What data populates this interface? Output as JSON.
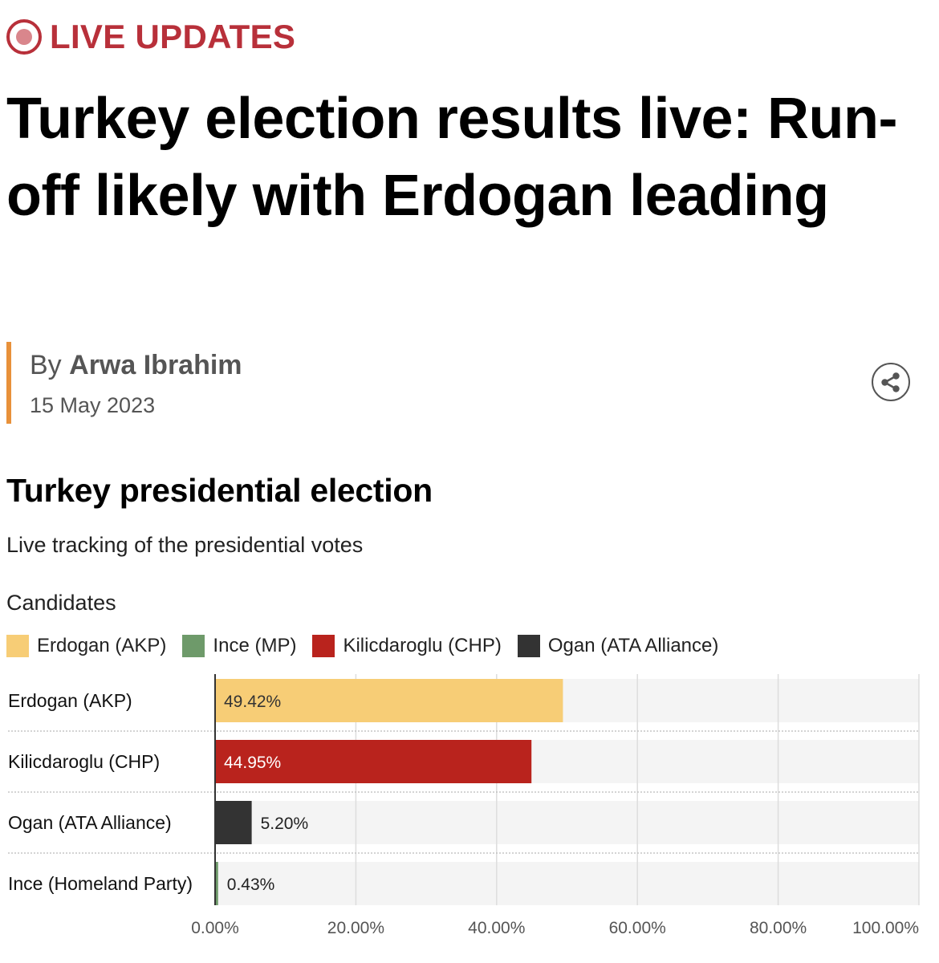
{
  "header": {
    "live_label": "LIVE UPDATES",
    "headline": "Turkey election results live: Run-off likely with Erdogan leading",
    "byline_prefix": "By",
    "author": "Arwa Ibrahim",
    "date": "15 May 2023",
    "share_icon": "share-icon"
  },
  "colors": {
    "live_red": "#b8303a",
    "accent_orange": "#e8913a",
    "erdogan": "#f7cd76",
    "ince": "#6e9a6a",
    "kilicdaroglu": "#b9231d",
    "ogan": "#333333"
  },
  "chart_data": {
    "type": "bar",
    "orientation": "horizontal",
    "title": "Turkey presidential election",
    "subtitle": "Live tracking of the presidential votes",
    "legend_title": "Candidates",
    "legend": [
      {
        "name": "Erdogan (AKP)",
        "color": "#f7cd76"
      },
      {
        "name": "Ince (MP)",
        "color": "#6e9a6a"
      },
      {
        "name": "Kilicdaroglu (CHP)",
        "color": "#b9231d"
      },
      {
        "name": "Ogan (ATA Alliance)",
        "color": "#333333"
      }
    ],
    "categories": [
      "Erdogan (AKP)",
      "Kilicdaroglu (CHP)",
      "Ogan (ATA Alliance)",
      "Ince (Homeland Party)"
    ],
    "values": [
      49.42,
      44.95,
      5.2,
      0.43
    ],
    "value_labels": [
      "49.42%",
      "44.95%",
      "5.20%",
      "0.43%"
    ],
    "bar_colors": [
      "#f7cd76",
      "#b9231d",
      "#333333",
      "#6e9a6a"
    ],
    "label_colors": [
      "#333333",
      "#ffffff",
      "#222222",
      "#222222"
    ],
    "xlim": [
      0,
      100
    ],
    "xticks": [
      0,
      20,
      40,
      60,
      80,
      100
    ],
    "xtick_labels": [
      "0.00%",
      "20.00%",
      "40.00%",
      "60.00%",
      "80.00%",
      "100.00%"
    ],
    "grid": true
  }
}
